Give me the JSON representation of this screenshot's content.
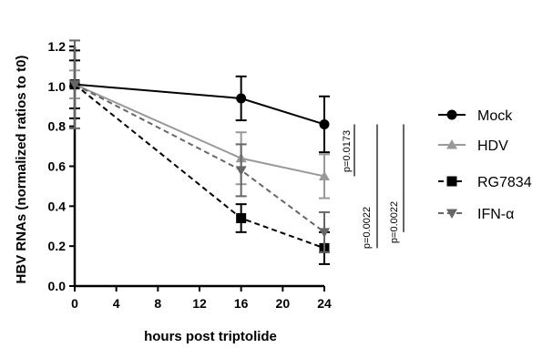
{
  "chart_data": {
    "type": "line",
    "xlabel": "hours post triptolide",
    "ylabel": "HBV RNAs (normalized ratios to t0)",
    "xlim": [
      0,
      24
    ],
    "ylim": [
      0,
      1.2
    ],
    "xticks": [
      0,
      4,
      8,
      12,
      16,
      20,
      24
    ],
    "yticks": [
      0.0,
      0.2,
      0.4,
      0.6,
      0.8,
      1.0,
      1.2
    ],
    "x": [
      0,
      16,
      24
    ],
    "legend_position": "right",
    "series": [
      {
        "name": "Mock",
        "values": [
          1.01,
          0.94,
          0.81
        ],
        "errors": [
          0.17,
          0.11,
          0.14
        ],
        "color": "#000000",
        "line_style": "solid",
        "marker": "circle"
      },
      {
        "name": "HDV",
        "values": [
          1.01,
          0.64,
          0.55
        ],
        "errors": [
          0.07,
          0.13,
          0.11
        ],
        "color": "#999999",
        "line_style": "solid",
        "marker": "triangle-up"
      },
      {
        "name": "RG7834",
        "values": [
          1.01,
          0.34,
          0.19
        ],
        "errors": [
          0.12,
          0.07,
          0.08
        ],
        "color": "#000000",
        "line_style": "dashed",
        "marker": "square"
      },
      {
        "name": "IFN-α",
        "values": [
          1.01,
          0.58,
          0.27
        ],
        "errors": [
          0.22,
          0.13,
          0.1
        ],
        "color": "#666666",
        "line_style": "dashed",
        "marker": "triangle-down"
      }
    ],
    "annotations": [
      {
        "text": "p=0.0173",
        "from": "Mock",
        "to": "HDV"
      },
      {
        "text": "p=0.0022",
        "from": "Mock",
        "to": "RG7834"
      },
      {
        "text": "p=0.0022",
        "from": "Mock",
        "to": "IFN-α"
      }
    ]
  }
}
